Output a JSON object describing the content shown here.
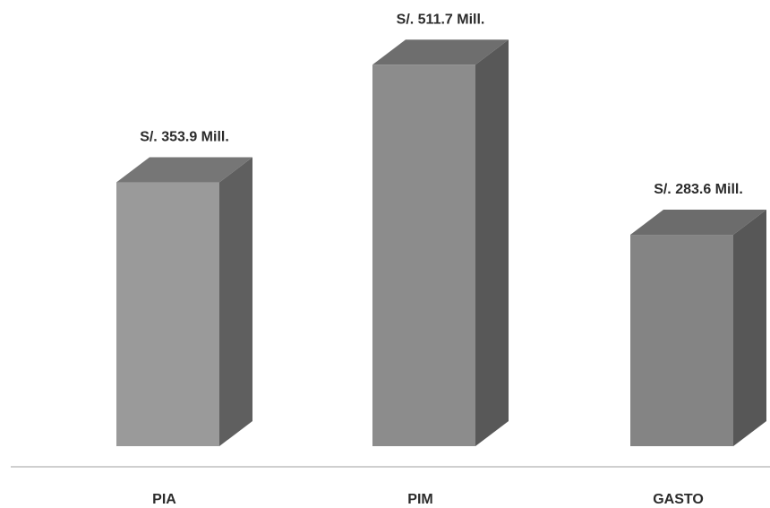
{
  "chart_data": {
    "type": "bar",
    "style": "3d-column",
    "categories": [
      "PIA",
      "PIM",
      "GASTO"
    ],
    "values": [
      353.9,
      511.7,
      283.6
    ],
    "value_labels": [
      "S/. 353.9 Mill.",
      "S/. 511.7 Mill.",
      "S/. 283.6 Mill."
    ],
    "unit": "S/. Mill.",
    "title": "",
    "xlabel": "",
    "ylabel": "",
    "grid": false,
    "legend": "none",
    "colors": {
      "front": [
        "#9a9a9a",
        "#8c8c8c",
        "#848484"
      ],
      "top": [
        "#767676",
        "#6e6e6e",
        "#6c6c6c"
      ],
      "side": [
        "#5f5f5f",
        "#585858",
        "#575757"
      ],
      "axis": "#bfbfbf"
    }
  }
}
